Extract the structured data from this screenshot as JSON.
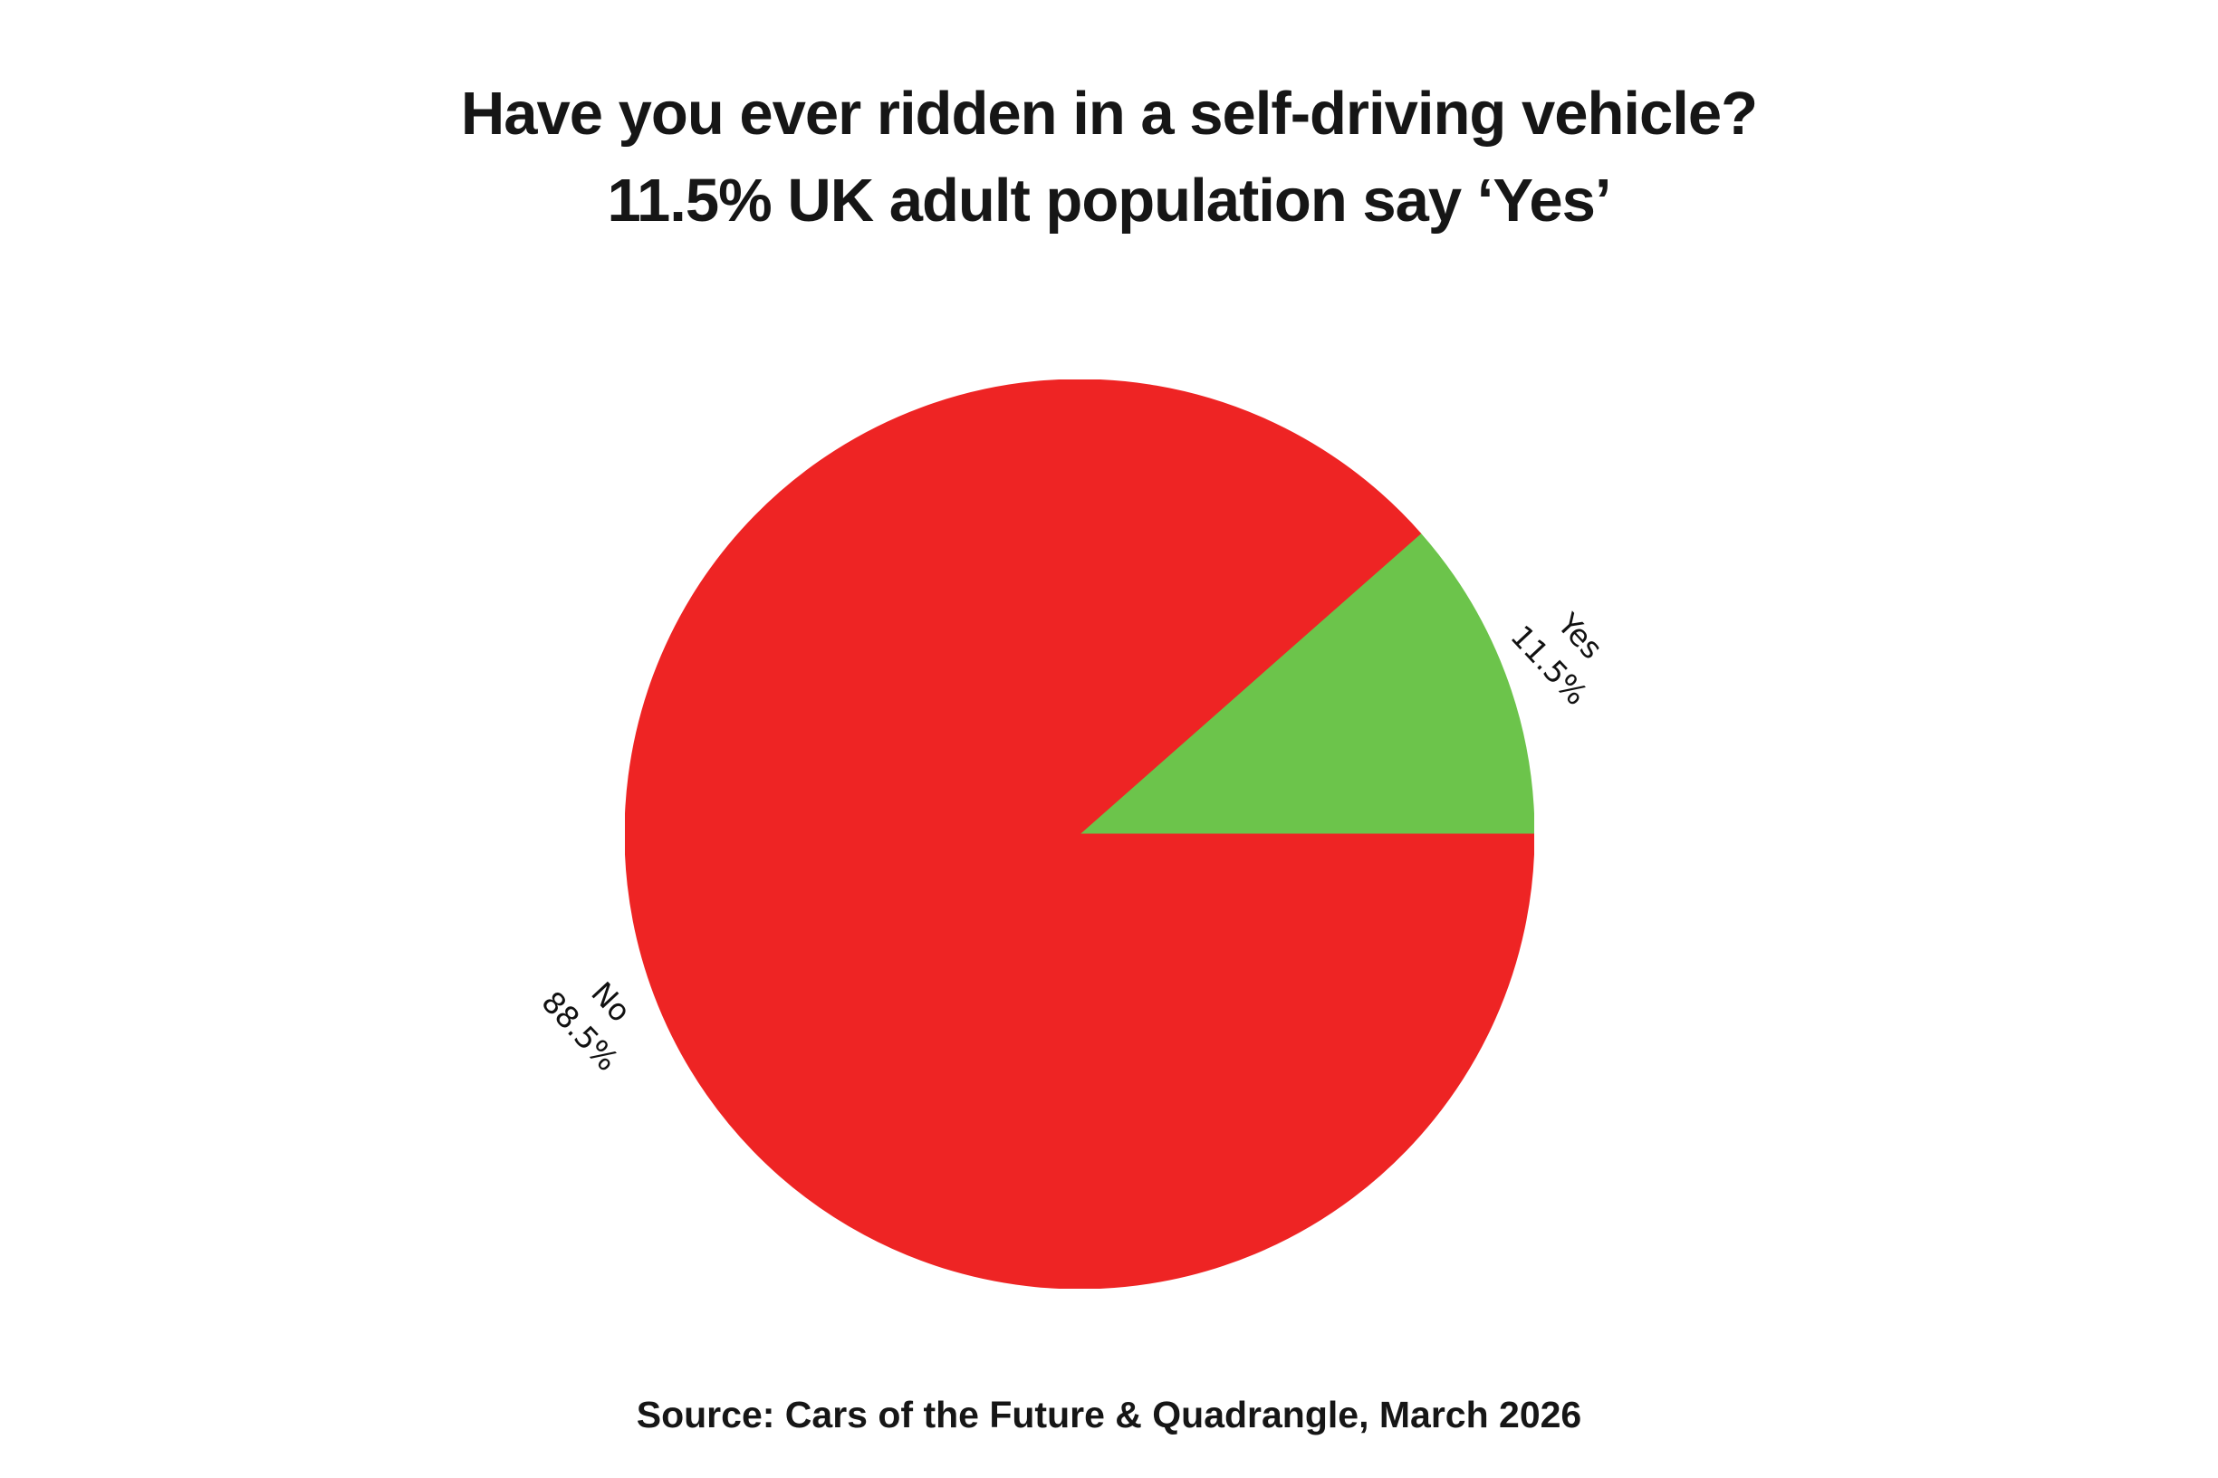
{
  "chart_data": {
    "type": "pie",
    "title_lines": [
      "Have you ever ridden in a self-driving vehicle?",
      "11.5% UK adult population say ‘Yes’"
    ],
    "source": "Source: Cars of the Future & Quadrangle, March 2026",
    "slices": [
      {
        "label": "Yes",
        "value": 11.5,
        "pct_label": "11.5%",
        "color": "#6cc44b"
      },
      {
        "label": "No",
        "value": 88.5,
        "pct_label": "88.5%",
        "color": "#ee2424"
      }
    ],
    "start_angle_deg": 0,
    "direction": "counterclockwise",
    "labels_rotated": true,
    "legend": "none",
    "background_color": "#ffffff",
    "text_color": "#161616"
  }
}
